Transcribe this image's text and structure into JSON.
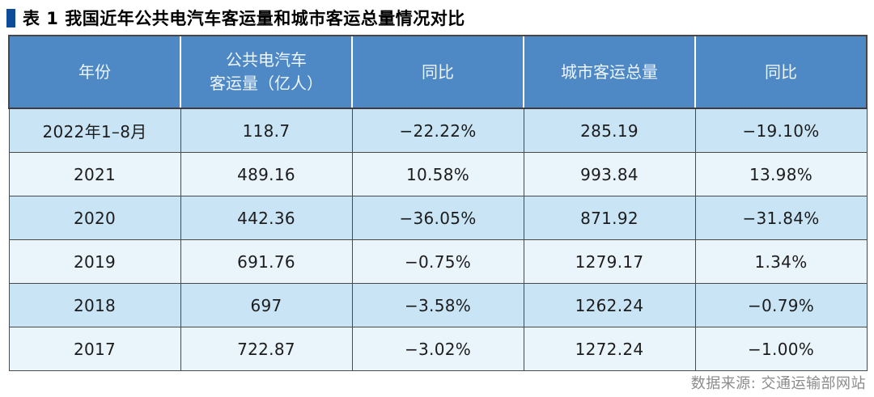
{
  "title": {
    "text": "表 1 我国近年公共电汽车客运量和城市客运总量情况对比"
  },
  "table": {
    "columns": [
      "年份",
      "公共电汽车\n客运量（亿人）",
      "同比",
      "城市客运总量",
      "同比"
    ],
    "rows": [
      [
        "2022年1–8月",
        "118.7",
        "−22.22%",
        "285.19",
        "−19.10%"
      ],
      [
        "2021",
        "489.16",
        "10.58%",
        "993.84",
        "13.98%"
      ],
      [
        "2020",
        "442.36",
        "−36.05%",
        "871.92",
        "−31.84%"
      ],
      [
        "2019",
        "691.76",
        "−0.75%",
        "1279.17",
        "1.34%"
      ],
      [
        "2018",
        "697",
        "−3.58%",
        "1262.24",
        "−0.79%"
      ],
      [
        "2017",
        "722.87",
        "−3.02%",
        "1272.24",
        "−1.00%"
      ]
    ]
  },
  "footer": {
    "source": "数据来源: 交通运输部网站"
  },
  "colors": {
    "title_marker": "#0e4c9a",
    "header_bg": "#4e88c5",
    "header_text": "#eef6fd",
    "row_odd_bg": "#c9e4f5",
    "row_even_bg": "#e9f4fb",
    "border_dark": "#4a4a4a",
    "footer_text": "#8c8c8c"
  }
}
